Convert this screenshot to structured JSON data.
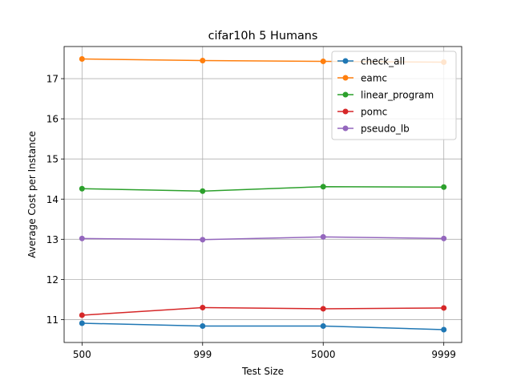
{
  "chart_data": {
    "type": "line",
    "title": "cifar10h 5 Humans",
    "xlabel": "Test Size",
    "ylabel": "Average Cost per Instance",
    "categories": [
      "500",
      "999",
      "5000",
      "9999"
    ],
    "y_ticks": [
      11,
      12,
      13,
      14,
      15,
      16,
      17
    ],
    "ylim": [
      10.43,
      17.8
    ],
    "grid": true,
    "legend_position": "top-right",
    "series": [
      {
        "name": "check_all",
        "color": "#1f77b4",
        "values": [
          10.91,
          10.84,
          10.84,
          10.75
        ]
      },
      {
        "name": "eamc",
        "color": "#ff7f0e",
        "values": [
          17.49,
          17.45,
          17.43,
          17.41
        ]
      },
      {
        "name": "linear_program",
        "color": "#2ca02c",
        "values": [
          14.26,
          14.2,
          14.31,
          14.3
        ]
      },
      {
        "name": "pomc",
        "color": "#d62728",
        "values": [
          11.11,
          11.3,
          11.27,
          11.29
        ]
      },
      {
        "name": "pseudo_lb",
        "color": "#9467bd",
        "values": [
          13.02,
          12.99,
          13.06,
          13.02
        ]
      }
    ]
  }
}
